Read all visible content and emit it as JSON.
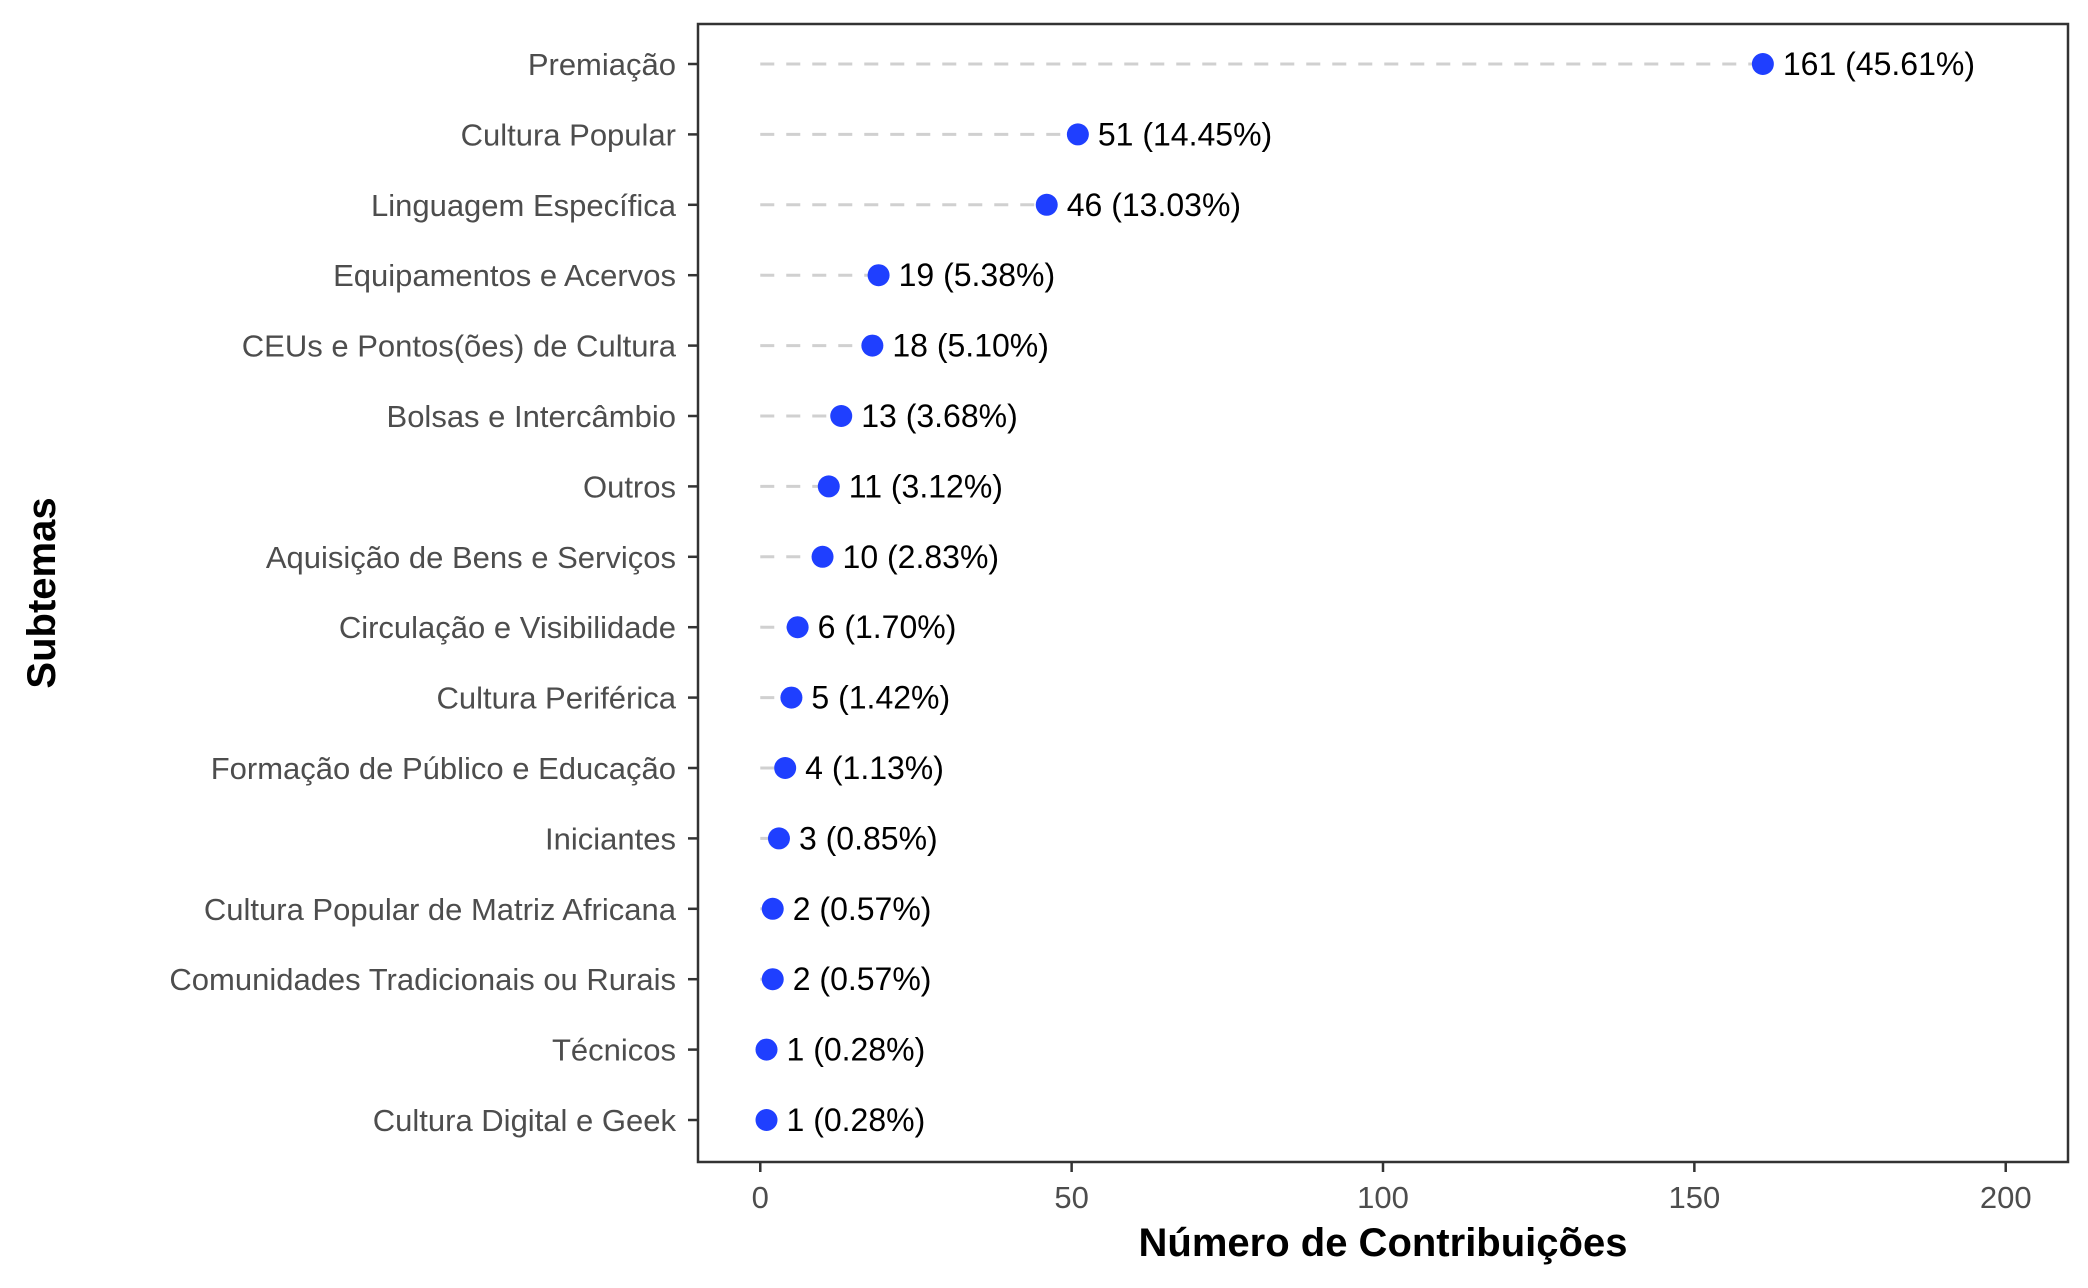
{
  "chart_data": {
    "type": "scatter",
    "style": "dot-plot with dashed leader lines",
    "xlabel": "Número de Contribuições",
    "ylabel": "Subtemas",
    "xlim": [
      -10,
      210
    ],
    "xticks": [
      0,
      50,
      100,
      150,
      200
    ],
    "grid": false,
    "legend": "none",
    "colors": {
      "point": "#1f3fff",
      "leader": "#d0d0d0",
      "axis": "#333333",
      "tick_text": "#4d4d4d"
    },
    "categories": [
      "Premiação",
      "Cultura Popular",
      "Linguagem Específica",
      "Equipamentos e Acervos",
      "CEUs e Pontos(ões) de Cultura",
      "Bolsas e Intercâmbio",
      "Outros",
      "Aquisição de Bens e Serviços",
      "Circulação e Visibilidade",
      "Cultura Periférica",
      "Formação de Público e Educação",
      "Iniciantes",
      "Cultura Popular de Matriz Africana",
      "Comunidades Tradicionais ou Rurais",
      "Técnicos",
      "Cultura Digital e Geek"
    ],
    "values": [
      161,
      51,
      46,
      19,
      18,
      13,
      11,
      10,
      6,
      5,
      4,
      3,
      2,
      2,
      1,
      1
    ],
    "labels": [
      "161 (45.61%)",
      "51 (14.45%)",
      "46 (13.03%)",
      "19 (5.38%)",
      "18 (5.10%)",
      "13 (3.68%)",
      "11 (3.12%)",
      "10 (2.83%)",
      "6 (1.70%)",
      "5 (1.42%)",
      "4 (1.13%)",
      "3 (0.85%)",
      "2 (0.57%)",
      "2 (0.57%)",
      "1 (0.28%)",
      "1 (0.28%)"
    ]
  }
}
